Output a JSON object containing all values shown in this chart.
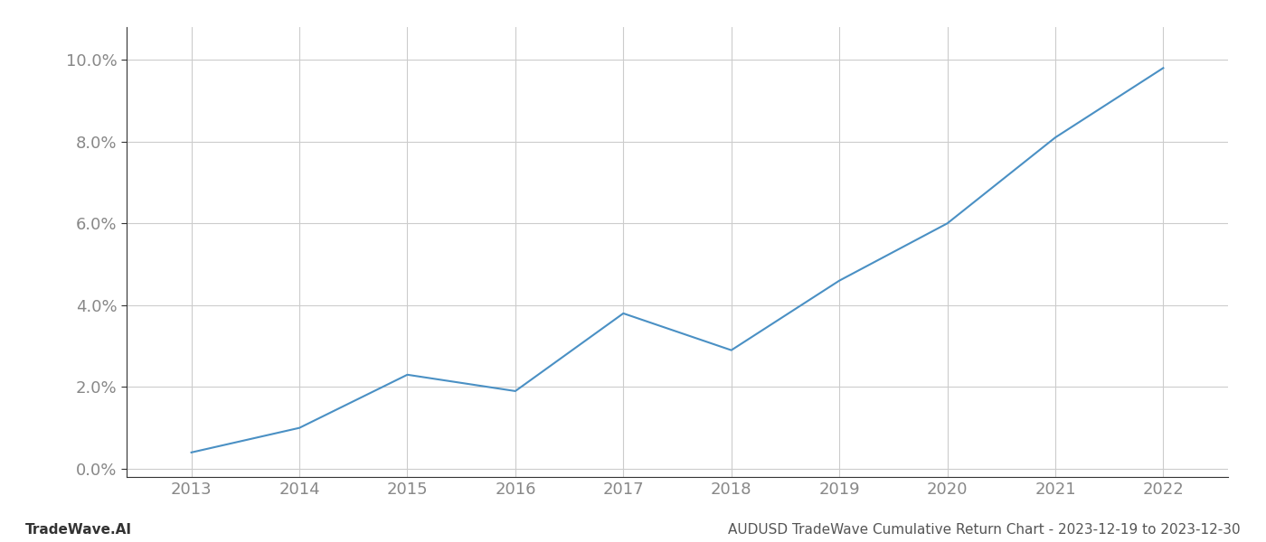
{
  "x_values": [
    2013,
    2014,
    2015,
    2016,
    2017,
    2018,
    2019,
    2020,
    2021,
    2022
  ],
  "y_values": [
    0.004,
    0.01,
    0.023,
    0.019,
    0.038,
    0.029,
    0.046,
    0.06,
    0.081,
    0.098
  ],
  "line_color": "#4a90c4",
  "line_width": 1.5,
  "background_color": "#ffffff",
  "grid_color": "#cccccc",
  "ylim": [
    -0.002,
    0.108
  ],
  "yticks": [
    0.0,
    0.02,
    0.04,
    0.06,
    0.08,
    0.1
  ],
  "xlim": [
    2012.4,
    2022.6
  ],
  "xticks": [
    2013,
    2014,
    2015,
    2016,
    2017,
    2018,
    2019,
    2020,
    2021,
    2022
  ],
  "footer_left": "TradeWave.AI",
  "footer_right": "AUDUSD TradeWave Cumulative Return Chart - 2023-12-19 to 2023-12-30",
  "footer_fontsize": 11,
  "tick_fontsize": 13,
  "spine_color": "#333333",
  "tick_color": "#777777",
  "label_color": "#888888"
}
